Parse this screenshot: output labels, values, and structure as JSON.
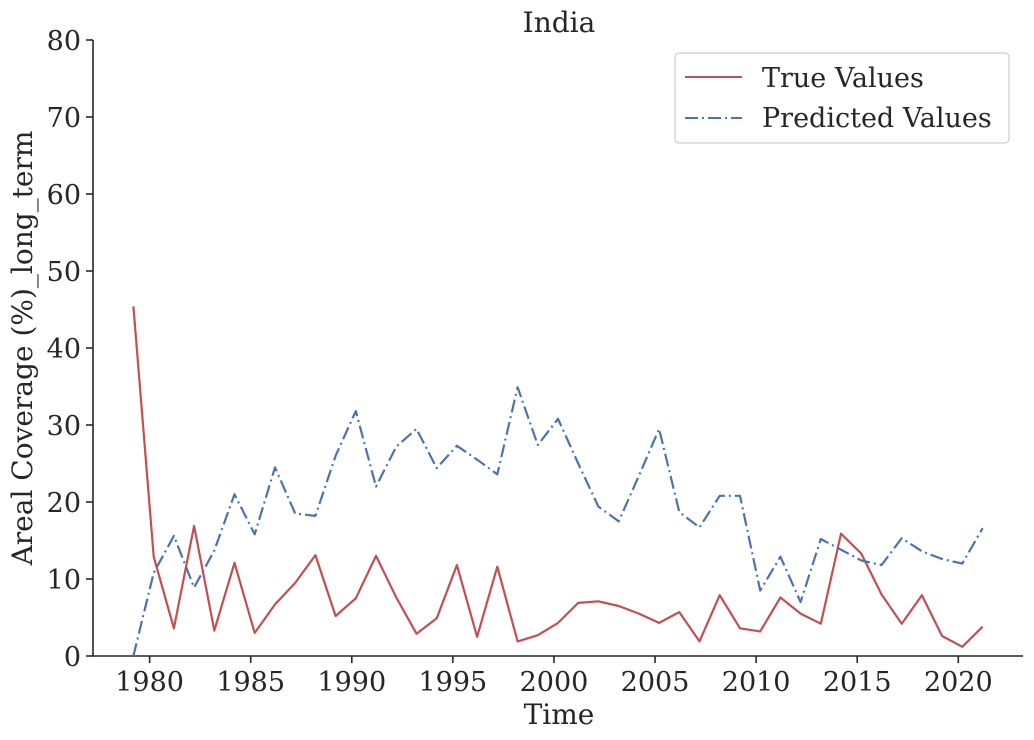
{
  "chart_data": {
    "type": "line",
    "title": "India",
    "xlabel": "Time",
    "ylabel": "Areal Coverage (%)_long_term",
    "xlim": [
      1977.2,
      2023.2
    ],
    "ylim": [
      0,
      80
    ],
    "x_ticks": [
      "1980",
      "1985",
      "1990",
      "1995",
      "2000",
      "2005",
      "2010",
      "2015",
      "2020"
    ],
    "y_ticks": [
      "0",
      "10",
      "20",
      "30",
      "40",
      "50",
      "60",
      "70",
      "80"
    ],
    "grid": false,
    "legend_position": "top-right",
    "x": [
      1979.2,
      1980.2,
      1981.2,
      1982.2,
      1983.2,
      1984.2,
      1985.2,
      1986.2,
      1987.2,
      1988.2,
      1989.2,
      1990.2,
      1991.2,
      1992.2,
      1993.2,
      1994.2,
      1995.2,
      1996.2,
      1997.2,
      1998.2,
      1999.2,
      2000.2,
      2001.2,
      2002.2,
      2003.2,
      2004.2,
      2005.2,
      2006.2,
      2007.2,
      2008.2,
      2009.2,
      2010.2,
      2011.2,
      2012.2,
      2013.2,
      2014.2,
      2015.2,
      2016.2,
      2017.2,
      2018.2,
      2019.2,
      2020.2,
      2021.2
    ],
    "series": [
      {
        "name": "True Values",
        "color": "#c44e52",
        "style": "solid",
        "values": [
          45.4,
          12.9,
          3.6,
          16.9,
          3.3,
          12.1,
          3.0,
          6.7,
          9.5,
          13.1,
          5.2,
          7.5,
          13.0,
          7.6,
          2.9,
          4.9,
          11.8,
          2.5,
          11.6,
          1.9,
          2.7,
          4.3,
          6.9,
          7.1,
          6.5,
          5.5,
          4.3,
          5.7,
          1.9,
          7.9,
          3.6,
          3.2,
          7.6,
          5.5,
          4.2,
          15.9,
          13.3,
          8.0,
          4.2,
          7.9,
          2.6,
          1.2,
          3.8
        ]
      },
      {
        "name": "Predicted Values",
        "color": "#4c72b0",
        "style": "dashdot",
        "values": [
          0.0,
          10.8,
          15.6,
          8.9,
          13.7,
          21.0,
          15.8,
          24.5,
          18.5,
          18.2,
          26.0,
          31.8,
          22.0,
          27.2,
          29.5,
          24.4,
          27.3,
          25.5,
          23.6,
          34.9,
          27.4,
          30.8,
          25.0,
          19.4,
          17.5,
          23.4,
          29.5,
          18.7,
          16.7,
          20.8,
          20.8,
          8.5,
          12.9,
          7.0,
          15.2,
          13.8,
          12.4,
          11.8,
          15.3,
          13.6,
          12.6,
          12.0,
          16.6
        ]
      }
    ]
  }
}
